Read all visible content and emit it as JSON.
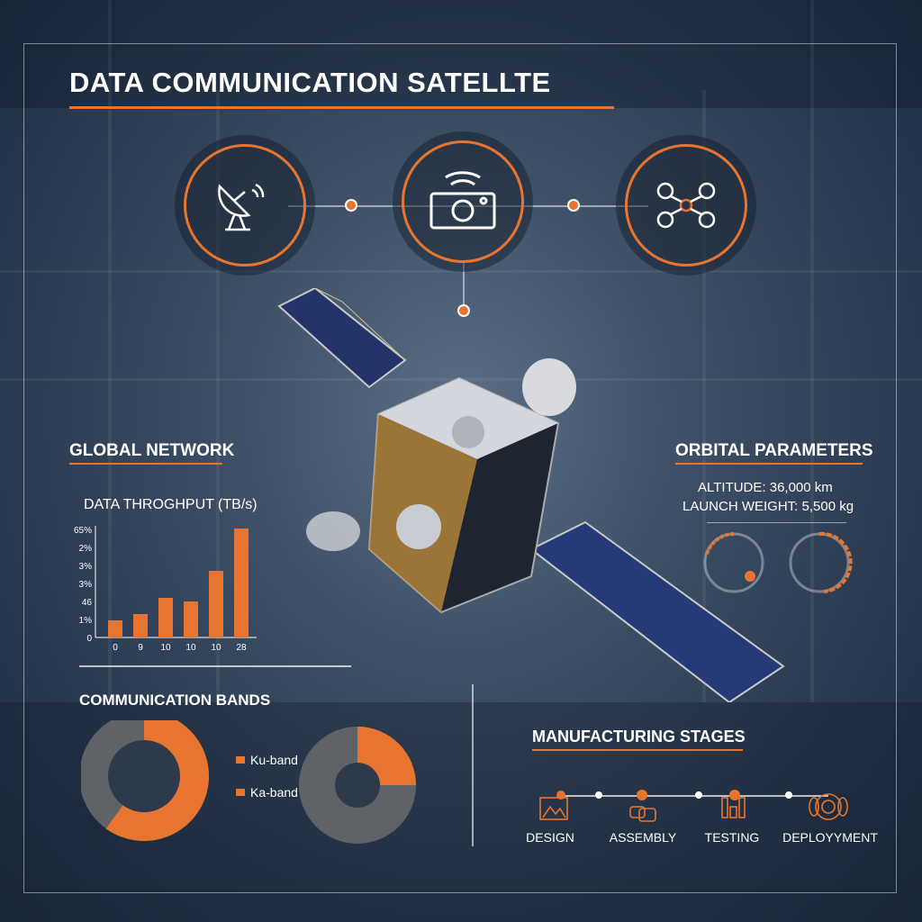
{
  "title": "DATA COMMUNICATION SATELLTE",
  "top_icons": [
    "satellite-dish-icon",
    "wireless-camera-icon",
    "drone-network-icon"
  ],
  "global_network": {
    "heading": "GLOBAL NETWORK",
    "chart_title": "DATA THROGHPUT (TB/s)"
  },
  "chart_data": [
    {
      "type": "bar",
      "title": "DATA THROGHPUT (TB/s)",
      "categories": [
        "0",
        "9",
        "10",
        "10",
        "10",
        "28"
      ],
      "values": [
        0.95,
        1.3,
        2.2,
        2.0,
        3.7,
        6.05
      ],
      "y_tick_labels": [
        "0",
        "1%",
        "46",
        "3%",
        "3%",
        "2%",
        "65%"
      ],
      "ylim": [
        0,
        6
      ],
      "grid": false,
      "color": "#e8752f"
    },
    {
      "type": "pie",
      "title": "COMMUNICATION BANDS",
      "donuts": [
        {
          "orange_fraction": 0.6
        },
        {
          "orange_fraction": 0.25
        }
      ],
      "legend": [
        "Ku-band",
        "Ka-band"
      ],
      "legend_placement": "center",
      "colors": {
        "primary": "#e8752f",
        "secondary": "#5f6266"
      }
    }
  ],
  "bands": {
    "heading": "COMMUNICATION BANDS",
    "legend": [
      "Ku-band",
      "Ka-band"
    ]
  },
  "orbital": {
    "heading": "ORBITAL PARAMETERS",
    "altitude": "ALTITUDE: 36,000 km",
    "weight": "LAUNCH WEIGHT: 5,500 kg"
  },
  "manufacturing": {
    "heading": "MANUFACTURING STAGES",
    "stages": [
      "DESIGN",
      "ASSEMBLY",
      "TESTING",
      "DEPLOYYMENT"
    ]
  },
  "colors": {
    "accent": "#e8752f",
    "background": "#2f4158"
  }
}
